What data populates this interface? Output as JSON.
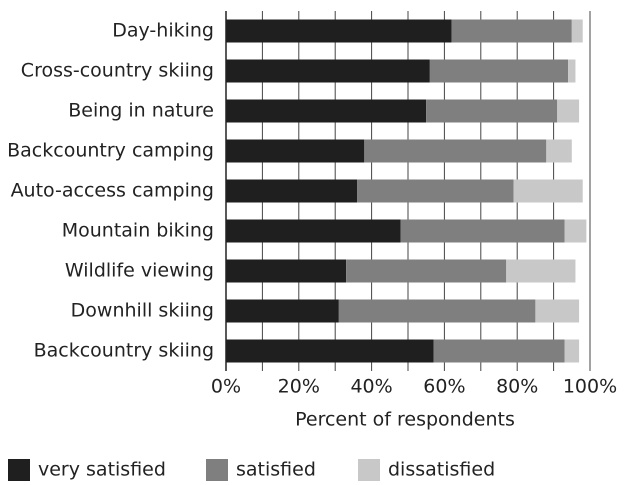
{
  "chart_data": {
    "type": "stacked-barh",
    "xlabel": "Percent of respondents",
    "categories": [
      "Day-hiking",
      "Cross-country skiing",
      "Being in nature",
      "Backcountry camping",
      "Auto-access camping",
      "Mountain biking",
      "Wildlife viewing",
      "Downhill skiing",
      "Backcountry skiing"
    ],
    "series": [
      {
        "name": "very satisfied",
        "color": "#1f1f1f",
        "values": [
          62,
          56,
          55,
          38,
          36,
          48,
          33,
          31,
          57
        ]
      },
      {
        "name": "satisfied",
        "color": "#7f7f7f",
        "values": [
          33,
          38,
          36,
          50,
          43,
          45,
          44,
          54,
          36
        ]
      },
      {
        "name": "dissatisfied",
        "color": "#c8c8c8",
        "values": [
          3,
          2,
          6,
          7,
          19,
          6,
          19,
          12,
          4
        ]
      }
    ],
    "xlim": [
      0,
      100
    ],
    "xticks": [
      {
        "value": 0,
        "label": "0%"
      },
      {
        "value": 20,
        "label": "20%"
      },
      {
        "value": 40,
        "label": "40%"
      },
      {
        "value": 60,
        "label": "60%"
      },
      {
        "value": 80,
        "label": "80%"
      },
      {
        "value": 100,
        "label": "100%"
      }
    ],
    "minor_xticks": [
      10,
      30,
      50,
      70,
      90
    ],
    "grid": true,
    "legend": "bottom"
  }
}
